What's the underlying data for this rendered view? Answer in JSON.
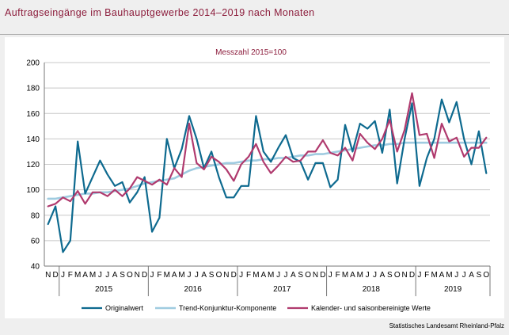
{
  "title": "Auftragseingänge im Bauhauptgewerbe 2014–2019 nach Monaten",
  "source": "Statistisches Landesamt Rheinland-Pfalz",
  "colors": {
    "title": "#8c1d3c",
    "original": "#0e6a8f",
    "trend": "#9fcbe0",
    "adjusted": "#b03a6e"
  },
  "chart_data": {
    "type": "line",
    "subtitle": "Messzahl 2015=100",
    "ylim": [
      40,
      200
    ],
    "yticks": [
      40,
      60,
      80,
      100,
      120,
      140,
      160,
      180,
      200
    ],
    "grid": true,
    "legend_position": "bottom",
    "month_labels": [
      "N",
      "D",
      "J",
      "F",
      "M",
      "A",
      "M",
      "J",
      "J",
      "A",
      "S",
      "O",
      "N",
      "D",
      "J",
      "F",
      "M",
      "A",
      "M",
      "J",
      "J",
      "A",
      "S",
      "O",
      "N",
      "D",
      "J",
      "F",
      "M",
      "A",
      "M",
      "J",
      "J",
      "A",
      "S",
      "O",
      "N",
      "D",
      "J",
      "F",
      "M",
      "A",
      "M",
      "J",
      "J",
      "A",
      "S",
      "O",
      "N",
      "D",
      "J",
      "F",
      "M",
      "A",
      "M",
      "J",
      "J",
      "A",
      "S",
      "O"
    ],
    "year_labels": [
      {
        "label": "2015",
        "start": 2,
        "end": 13
      },
      {
        "label": "2016",
        "start": 14,
        "end": 25
      },
      {
        "label": "2017",
        "start": 26,
        "end": 37
      },
      {
        "label": "2018",
        "start": 38,
        "end": 49
      },
      {
        "label": "2019",
        "start": 50,
        "end": 59
      }
    ],
    "series": [
      {
        "name": "Originalwert",
        "values": [
          73,
          87,
          51,
          60,
          138,
          97,
          110,
          123,
          112,
          103,
          106,
          90,
          98,
          110,
          67,
          78,
          140,
          117,
          132,
          158,
          140,
          117,
          130,
          110,
          94,
          94,
          103,
          103,
          158,
          130,
          122,
          133,
          143,
          125,
          122,
          108,
          121,
          121,
          102,
          108,
          151,
          130,
          152,
          148,
          154,
          129,
          163,
          105,
          140,
          168,
          103,
          125,
          140,
          171,
          153,
          169,
          140,
          120,
          146,
          113
        ]
      },
      {
        "name": "Trend-Konjunktur-Komponente",
        "values": [
          93,
          93,
          94,
          95,
          96,
          97,
          97,
          98,
          98,
          99,
          100,
          101,
          103,
          105,
          106,
          107,
          108,
          109,
          112,
          115,
          117,
          118,
          119,
          120,
          121,
          121,
          122,
          123,
          123,
          124,
          124,
          125,
          125,
          126,
          127,
          127,
          128,
          128,
          129,
          130,
          131,
          132,
          133,
          134,
          135,
          135,
          136,
          136,
          137,
          137,
          137,
          137,
          137,
          137,
          137,
          137,
          137,
          137,
          137,
          137
        ]
      },
      {
        "name": "Kalender- und saisonbereinigte Werte",
        "values": [
          87,
          89,
          94,
          91,
          99,
          89,
          98,
          98,
          95,
          100,
          95,
          101,
          110,
          107,
          104,
          108,
          104,
          117,
          110,
          152,
          121,
          116,
          126,
          122,
          116,
          107,
          120,
          126,
          136,
          122,
          113,
          119,
          126,
          122,
          123,
          130,
          130,
          139,
          129,
          127,
          133,
          123,
          144,
          137,
          132,
          140,
          155,
          130,
          147,
          176,
          143,
          144,
          125,
          152,
          138,
          141,
          126,
          133,
          133,
          141
        ]
      }
    ]
  }
}
